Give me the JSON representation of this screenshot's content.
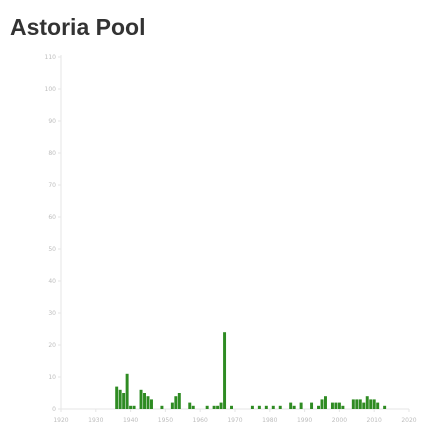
{
  "page": {
    "title": "Astoria Pool"
  },
  "chart_data": {
    "type": "bar",
    "title": "Astoria Pool",
    "xlabel": "",
    "ylabel": "",
    "xlim": [
      1920,
      2020
    ],
    "ylim": [
      0,
      110
    ],
    "x_ticks": [
      1920,
      1930,
      1940,
      1950,
      1960,
      1970,
      1980,
      1990,
      2000,
      2010,
      2020
    ],
    "y_ticks": [
      0,
      10,
      20,
      30,
      40,
      50,
      60,
      70,
      80,
      90,
      100,
      110
    ],
    "grid": false,
    "legend": "none",
    "bar_color": "#2e8b22",
    "axis_color": "#e5e5e5",
    "tick_label_color": "#bdbdbd",
    "x": [
      1936,
      1937,
      1938,
      1939,
      1940,
      1941,
      1943,
      1944,
      1945,
      1946,
      1949,
      1952,
      1953,
      1954,
      1957,
      1958,
      1962,
      1964,
      1965,
      1966,
      1967,
      1969,
      1975,
      1977,
      1979,
      1981,
      1983,
      1986,
      1987,
      1989,
      1992,
      1994,
      1995,
      1996,
      1998,
      1999,
      2000,
      2001,
      2004,
      2005,
      2006,
      2007,
      2008,
      2009,
      2010,
      2011,
      2013
    ],
    "values": [
      7,
      6,
      5,
      11,
      1,
      1,
      6,
      5,
      4,
      3,
      1,
      2,
      4,
      5,
      2,
      1,
      1,
      1,
      1,
      2,
      24,
      1,
      1,
      1,
      1,
      1,
      1,
      2,
      1,
      2,
      2,
      1,
      3,
      4,
      2,
      2,
      2,
      1,
      3,
      3,
      3,
      2,
      4,
      3,
      3,
      2,
      1
    ]
  }
}
